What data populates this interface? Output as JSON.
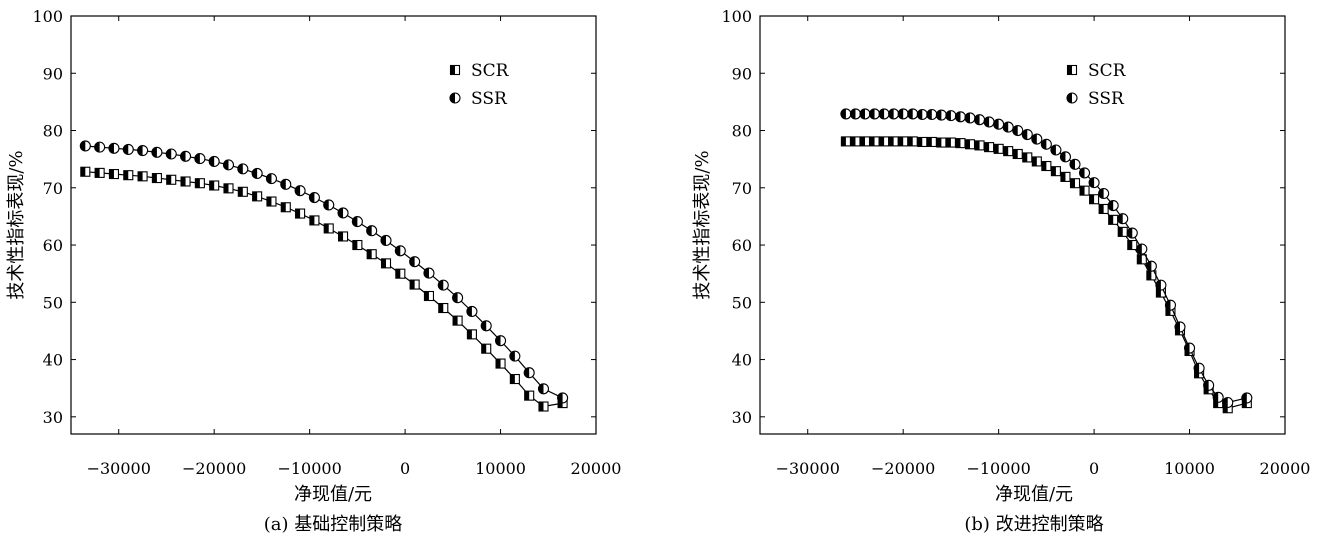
{
  "chart_data": [
    {
      "type": "line",
      "caption": "(a) 基础控制策略",
      "xlabel": "净现值/元",
      "ylabel": "技术性指标表现/%",
      "xlim": [
        -35000,
        20000
      ],
      "ylim": [
        27,
        100
      ],
      "xticks": [
        -30000,
        -20000,
        -10000,
        0,
        10000,
        20000
      ],
      "yticks": [
        30,
        40,
        50,
        60,
        70,
        80,
        90,
        100
      ],
      "legend": "top-right",
      "series": [
        {
          "name": "SCR",
          "marker": "half-filled-square",
          "x": [
            -33500,
            -32000,
            -30500,
            -29000,
            -27500,
            -26000,
            -24500,
            -23000,
            -21500,
            -20000,
            -18500,
            -17000,
            -15500,
            -14000,
            -12500,
            -11000,
            -9500,
            -8000,
            -6500,
            -5000,
            -3500,
            -2000,
            -500,
            1000,
            2500,
            4000,
            5500,
            7000,
            8500,
            10000,
            11500,
            13000,
            14500,
            16500
          ],
          "y": [
            72.8,
            72.6,
            72.4,
            72.2,
            72.0,
            71.7,
            71.4,
            71.1,
            70.8,
            70.4,
            69.9,
            69.3,
            68.5,
            67.6,
            66.6,
            65.5,
            64.3,
            62.9,
            61.5,
            60.0,
            58.4,
            56.8,
            55.0,
            53.1,
            51.1,
            49.0,
            46.8,
            44.4,
            41.9,
            39.3,
            36.6,
            33.7,
            31.8,
            32.4
          ]
        },
        {
          "name": "SSR",
          "marker": "half-filled-circle",
          "x": [
            -33500,
            -32000,
            -30500,
            -29000,
            -27500,
            -26000,
            -24500,
            -23000,
            -21500,
            -20000,
            -18500,
            -17000,
            -15500,
            -14000,
            -12500,
            -11000,
            -9500,
            -8000,
            -6500,
            -5000,
            -3500,
            -2000,
            -500,
            1000,
            2500,
            4000,
            5500,
            7000,
            8500,
            10000,
            11500,
            13000,
            14500,
            16500
          ],
          "y": [
            77.3,
            77.1,
            76.9,
            76.7,
            76.5,
            76.2,
            75.9,
            75.5,
            75.1,
            74.6,
            74.0,
            73.3,
            72.5,
            71.6,
            70.6,
            69.5,
            68.3,
            67.0,
            65.6,
            64.1,
            62.5,
            60.8,
            59.0,
            57.1,
            55.1,
            53.0,
            50.8,
            48.4,
            45.9,
            43.3,
            40.6,
            37.7,
            34.9,
            33.3
          ]
        }
      ]
    },
    {
      "type": "line",
      "caption": "(b) 改进控制策略",
      "xlabel": "净现值/元",
      "ylabel": "技术性指标表现/%",
      "xlim": [
        -35000,
        20000
      ],
      "ylim": [
        27,
        100
      ],
      "xticks": [
        -30000,
        -20000,
        -10000,
        0,
        10000,
        20000
      ],
      "yticks": [
        30,
        40,
        50,
        60,
        70,
        80,
        90,
        100
      ],
      "legend": "top-right",
      "series": [
        {
          "name": "SCR",
          "marker": "half-filled-square",
          "x": [
            -26000,
            -25000,
            -24000,
            -23000,
            -22000,
            -21000,
            -20000,
            -19000,
            -18000,
            -17000,
            -16000,
            -15000,
            -14000,
            -13000,
            -12000,
            -11000,
            -10000,
            -9000,
            -8000,
            -7000,
            -6000,
            -5000,
            -4000,
            -3000,
            -2000,
            -1000,
            0,
            1000,
            2000,
            3000,
            4000,
            5000,
            6000,
            7000,
            8000,
            9000,
            10000,
            11000,
            12000,
            13000,
            14000,
            16000
          ],
          "y": [
            78.1,
            78.1,
            78.1,
            78.1,
            78.1,
            78.1,
            78.1,
            78.1,
            78.0,
            78.0,
            77.9,
            77.9,
            77.8,
            77.6,
            77.4,
            77.1,
            76.8,
            76.4,
            75.9,
            75.3,
            74.6,
            73.8,
            72.9,
            71.9,
            70.8,
            69.5,
            68.0,
            66.3,
            64.4,
            62.3,
            60.0,
            57.5,
            54.7,
            51.7,
            48.5,
            45.1,
            41.5,
            37.6,
            34.8,
            32.4,
            31.5,
            32.4
          ]
        },
        {
          "name": "SSR",
          "marker": "half-filled-circle",
          "x": [
            -26000,
            -25000,
            -24000,
            -23000,
            -22000,
            -21000,
            -20000,
            -19000,
            -18000,
            -17000,
            -16000,
            -15000,
            -14000,
            -13000,
            -12000,
            -11000,
            -10000,
            -9000,
            -8000,
            -7000,
            -6000,
            -5000,
            -4000,
            -3000,
            -2000,
            -1000,
            0,
            1000,
            2000,
            3000,
            4000,
            5000,
            6000,
            7000,
            8000,
            9000,
            10000,
            11000,
            12000,
            13000,
            14000,
            16000
          ],
          "y": [
            82.9,
            82.9,
            82.9,
            82.9,
            82.9,
            82.9,
            82.9,
            82.9,
            82.8,
            82.8,
            82.7,
            82.6,
            82.4,
            82.2,
            81.9,
            81.5,
            81.1,
            80.6,
            80.0,
            79.3,
            78.5,
            77.6,
            76.6,
            75.4,
            74.1,
            72.6,
            70.9,
            69.0,
            66.9,
            64.6,
            62.1,
            59.3,
            56.3,
            53.0,
            49.5,
            45.7,
            42.0,
            38.5,
            35.5,
            33.4,
            32.5,
            33.3
          ]
        }
      ]
    }
  ]
}
